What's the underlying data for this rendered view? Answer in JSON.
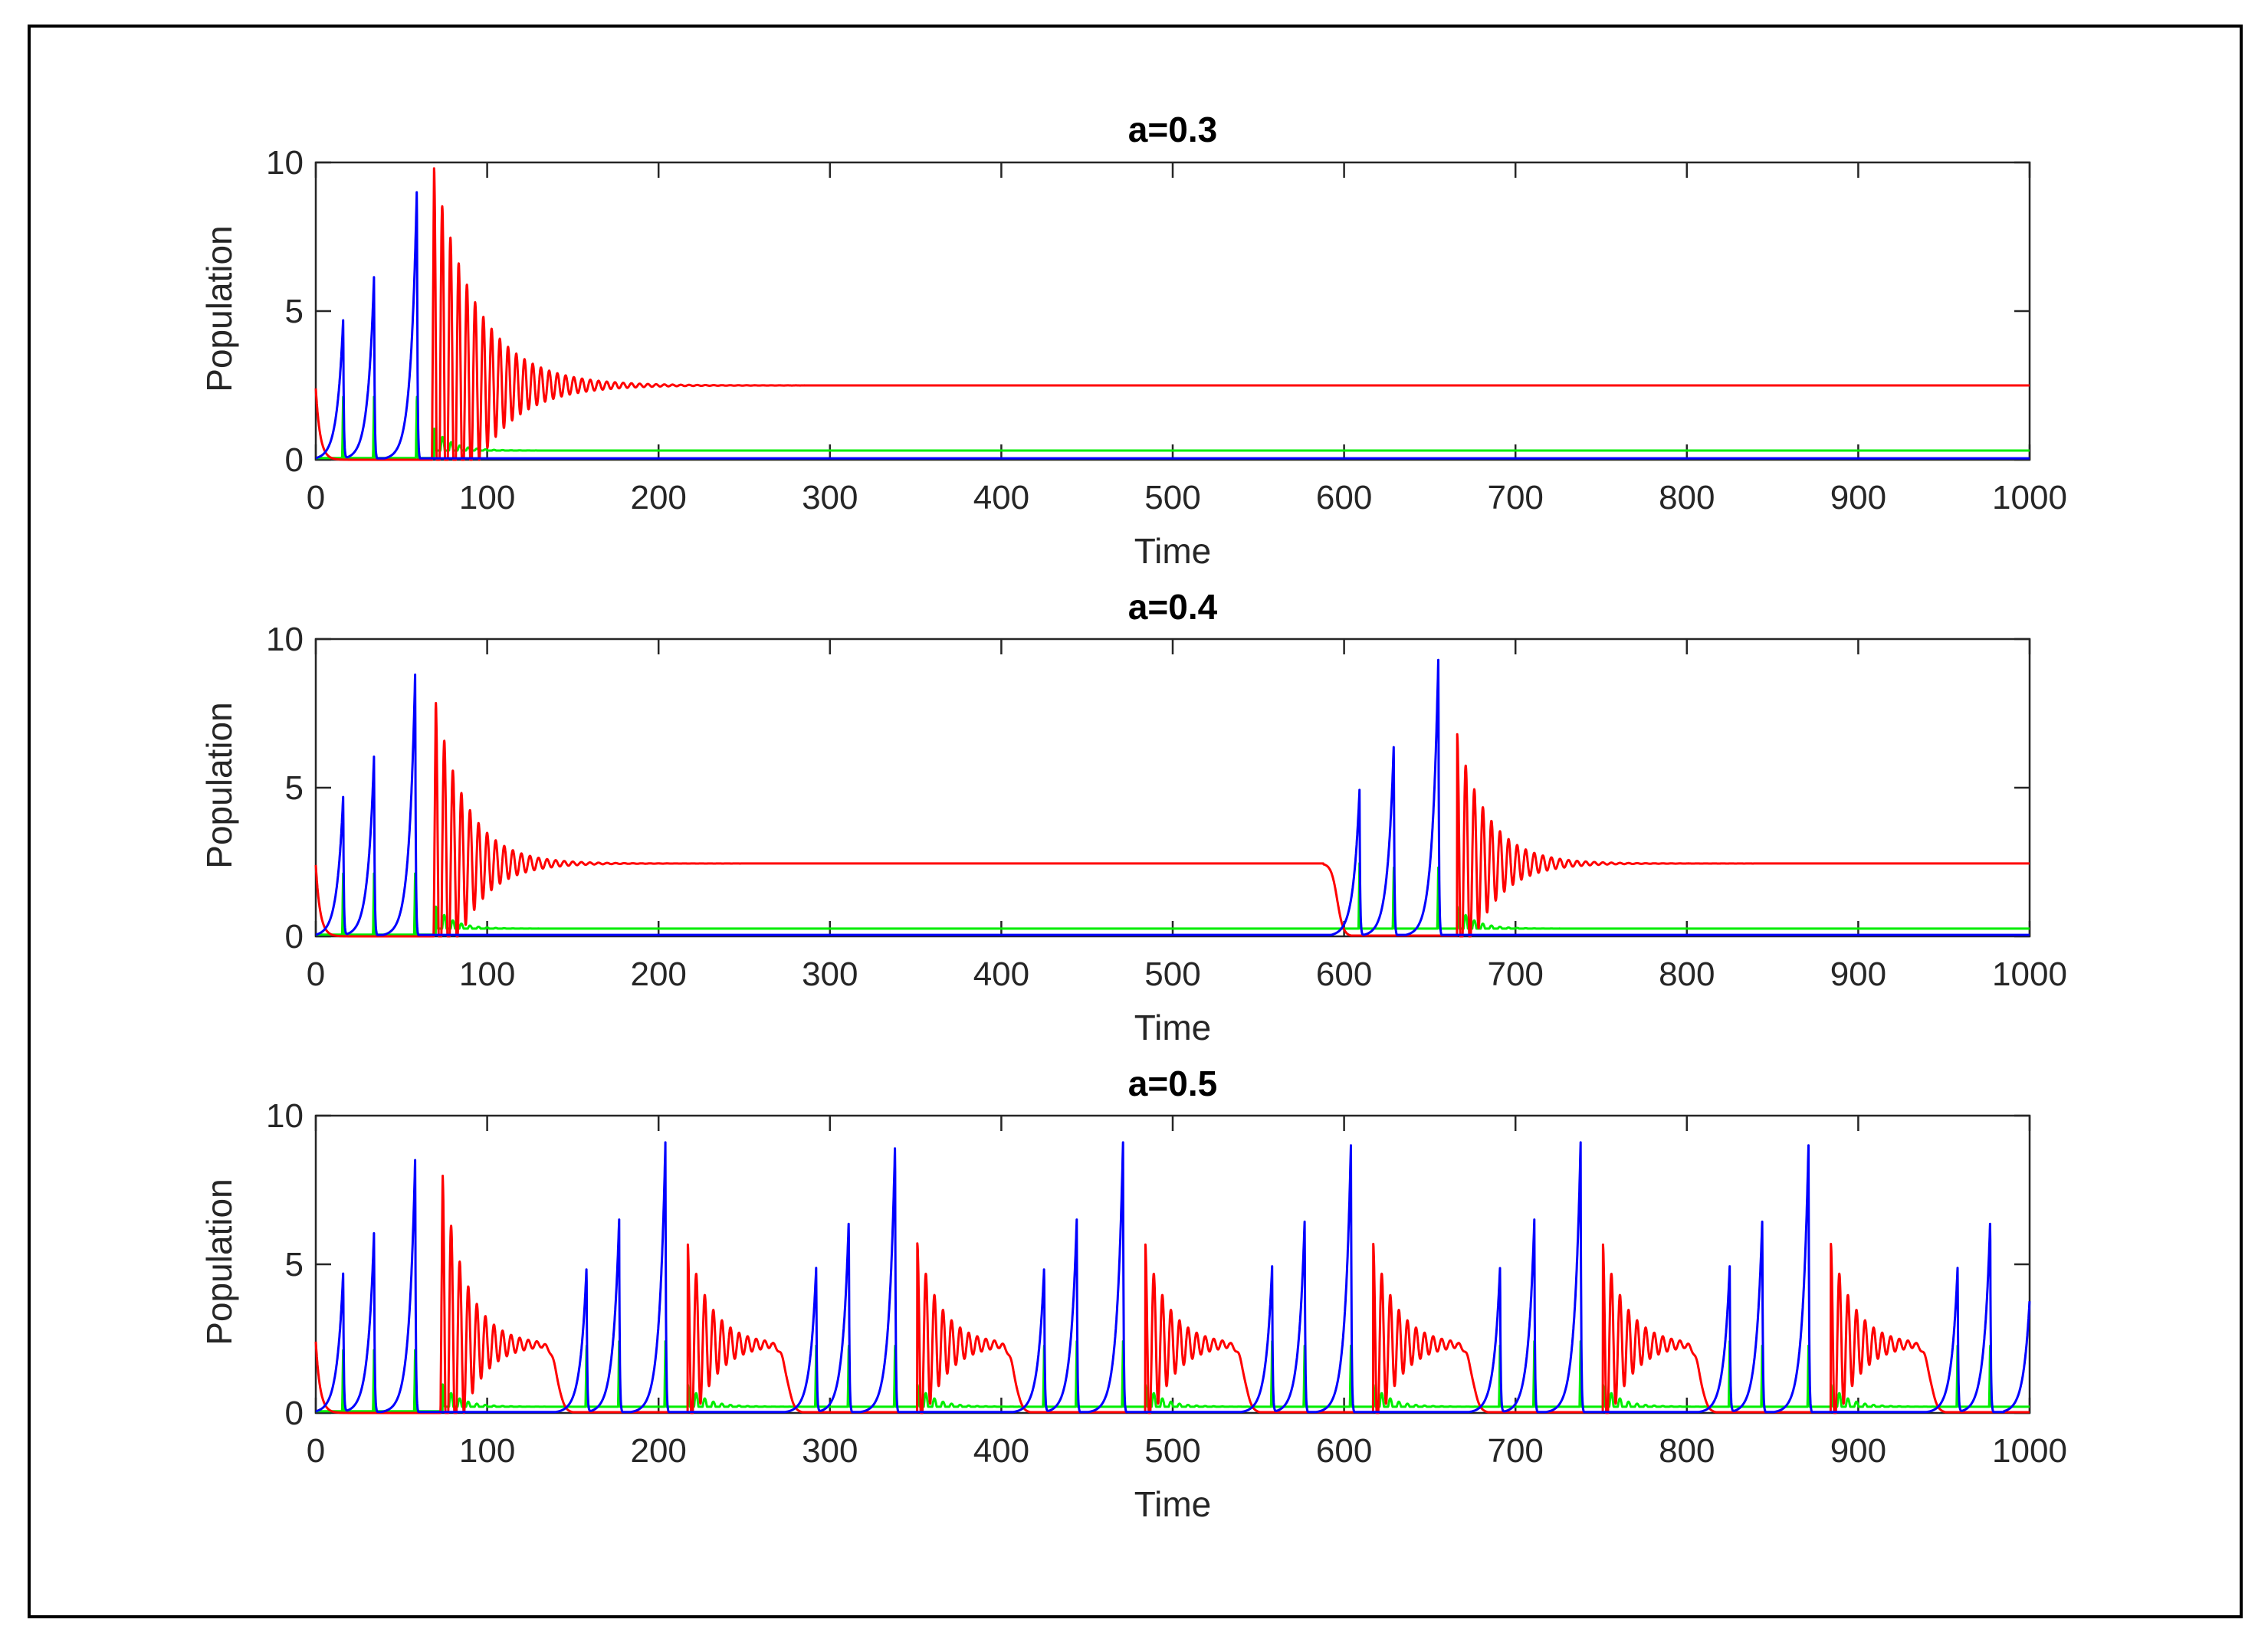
{
  "chart_data": [
    {
      "type": "line",
      "title": "a=0.3",
      "xlabel": "Time",
      "ylabel": "Population",
      "xlim": [
        0,
        1000
      ],
      "ylim": [
        0,
        10
      ],
      "xticks": [
        "0",
        "100",
        "200",
        "300",
        "400",
        "500",
        "600",
        "700",
        "800",
        "900",
        "1000"
      ],
      "yticks": [
        "0",
        "5",
        "10"
      ],
      "series": [
        {
          "name": "blue",
          "color": "#0000ff",
          "peaks": [
            {
              "t": 16,
              "h": 4.7
            },
            {
              "t": 34,
              "h": 6.2
            },
            {
              "t": 59,
              "h": 9.2
            }
          ],
          "settles_to": 0.05,
          "settle_start": 66,
          "final": 0.05
        },
        {
          "name": "red",
          "color": "#ff0000",
          "start": 2.4,
          "bursts": [
            {
              "t": 69,
              "h": 9.8,
              "period": 4.8,
              "decay": 25
            }
          ],
          "equilibrium": 2.5,
          "declines": []
        },
        {
          "name": "green",
          "color": "#00ee00",
          "spikes": [
            16,
            34,
            59
          ],
          "equilibrium": 0.25,
          "burst_times": [
            69
          ]
        }
      ]
    },
    {
      "type": "line",
      "title": "a=0.4",
      "xlabel": "Time",
      "ylabel": "Population",
      "xlim": [
        0,
        1000
      ],
      "ylim": [
        0,
        10
      ],
      "xticks": [
        "0",
        "100",
        "200",
        "300",
        "400",
        "500",
        "600",
        "700",
        "800",
        "900",
        "1000"
      ],
      "yticks": [
        "0",
        "5",
        "10"
      ],
      "series": [
        {
          "name": "blue",
          "color": "#0000ff",
          "peaks": [
            {
              "t": 16,
              "h": 4.7
            },
            {
              "t": 34,
              "h": 6.1
            },
            {
              "t": 58,
              "h": 8.9
            },
            {
              "t": 609,
              "h": 4.9
            },
            {
              "t": 629,
              "h": 6.5
            },
            {
              "t": 655,
              "h": 9.4
            }
          ],
          "final": 0.05
        },
        {
          "name": "red",
          "color": "#ff0000",
          "start": 2.4,
          "bursts": [
            {
              "t": 70,
              "h": 7.9,
              "period": 5,
              "decay": 18
            },
            {
              "t": 666,
              "h": 6.8,
              "period": 5,
              "decay": 18
            }
          ],
          "equilibrium": 2.45,
          "declines": [
            {
              "t0": 588,
              "t1": 604
            }
          ]
        },
        {
          "name": "green",
          "color": "#00ee00",
          "spikes": [
            16,
            34,
            58,
            609,
            629,
            655
          ],
          "equilibrium": 0.2,
          "burst_times": [
            70,
            666
          ]
        }
      ]
    },
    {
      "type": "line",
      "title": "a=0.5",
      "xlabel": "Time",
      "ylabel": "Population",
      "xlim": [
        0,
        1000
      ],
      "ylim": [
        0,
        10
      ],
      "xticks": [
        "0",
        "100",
        "200",
        "300",
        "400",
        "500",
        "600",
        "700",
        "800",
        "900",
        "1000"
      ],
      "yticks": [
        "0",
        "5",
        "10"
      ],
      "series": [
        {
          "name": "blue",
          "color": "#0000ff",
          "peaks": [
            {
              "t": 16,
              "h": 4.7
            },
            {
              "t": 34,
              "h": 6.1
            },
            {
              "t": 58,
              "h": 8.6
            },
            {
              "t": 158,
              "h": 4.9
            },
            {
              "t": 177,
              "h": 6.5
            },
            {
              "t": 204,
              "h": 9.1
            },
            {
              "t": 292,
              "h": 4.9
            },
            {
              "t": 311,
              "h": 6.5
            },
            {
              "t": 338,
              "h": 9.1
            },
            {
              "t": 425,
              "h": 4.9
            },
            {
              "t": 444,
              "h": 6.5
            },
            {
              "t": 471,
              "h": 9.1
            },
            {
              "t": 558,
              "h": 4.9
            },
            {
              "t": 577,
              "h": 6.5
            },
            {
              "t": 604,
              "h": 9.1
            },
            {
              "t": 691,
              "h": 4.9
            },
            {
              "t": 711,
              "h": 6.5
            },
            {
              "t": 738,
              "h": 9.1
            },
            {
              "t": 825,
              "h": 4.9
            },
            {
              "t": 844,
              "h": 6.5
            },
            {
              "t": 871,
              "h": 9.1
            },
            {
              "t": 958,
              "h": 4.9
            },
            {
              "t": 977,
              "h": 6.5
            }
          ],
          "final_rise": {
            "t0": 985,
            "t1": 1000,
            "h": 3.8
          }
        },
        {
          "name": "red",
          "color": "#ff0000",
          "start": 2.4,
          "bursts": [
            {
              "t": 74,
              "h": 8.0,
              "period": 5,
              "decay": 14
            },
            {
              "t": 217,
              "h": 5.7,
              "period": 5,
              "decay": 14
            },
            {
              "t": 351,
              "h": 5.7,
              "period": 5,
              "decay": 14
            },
            {
              "t": 484,
              "h": 5.7,
              "period": 5,
              "decay": 14
            },
            {
              "t": 617,
              "h": 5.7,
              "period": 5,
              "decay": 14
            },
            {
              "t": 751,
              "h": 5.7,
              "period": 5,
              "decay": 14
            },
            {
              "t": 884,
              "h": 5.7,
              "period": 5,
              "decay": 14
            }
          ],
          "equilibrium": 2.3,
          "declines": [
            {
              "t0": 132,
              "t1": 150
            },
            {
              "t0": 266,
              "t1": 284
            },
            {
              "t0": 399,
              "t1": 417
            },
            {
              "t0": 533,
              "t1": 551
            },
            {
              "t0": 666,
              "t1": 684
            },
            {
              "t0": 799,
              "t1": 817
            },
            {
              "t0": 933,
              "t1": 951
            }
          ]
        },
        {
          "name": "green",
          "color": "#00ee00",
          "spikes": [
            16,
            34,
            58,
            158,
            177,
            204,
            292,
            311,
            338,
            425,
            444,
            471,
            558,
            577,
            604,
            691,
            711,
            738,
            825,
            844,
            871,
            958,
            977
          ],
          "equilibrium": 0.15,
          "burst_times": [
            74,
            217,
            351,
            484,
            617,
            751,
            884
          ]
        }
      ]
    }
  ]
}
